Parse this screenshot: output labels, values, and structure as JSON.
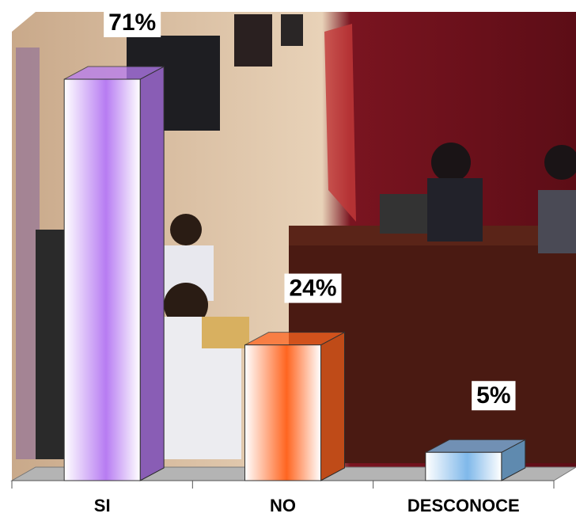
{
  "chart_data": {
    "type": "bar3d",
    "categories": [
      "SI",
      "NO",
      "DESCONOCE"
    ],
    "values": [
      71,
      24,
      5
    ],
    "value_labels": [
      "71%",
      "24%",
      "5%"
    ],
    "colors": [
      "#b77cf2",
      "#ff6520",
      "#7fb8ea"
    ]
  }
}
